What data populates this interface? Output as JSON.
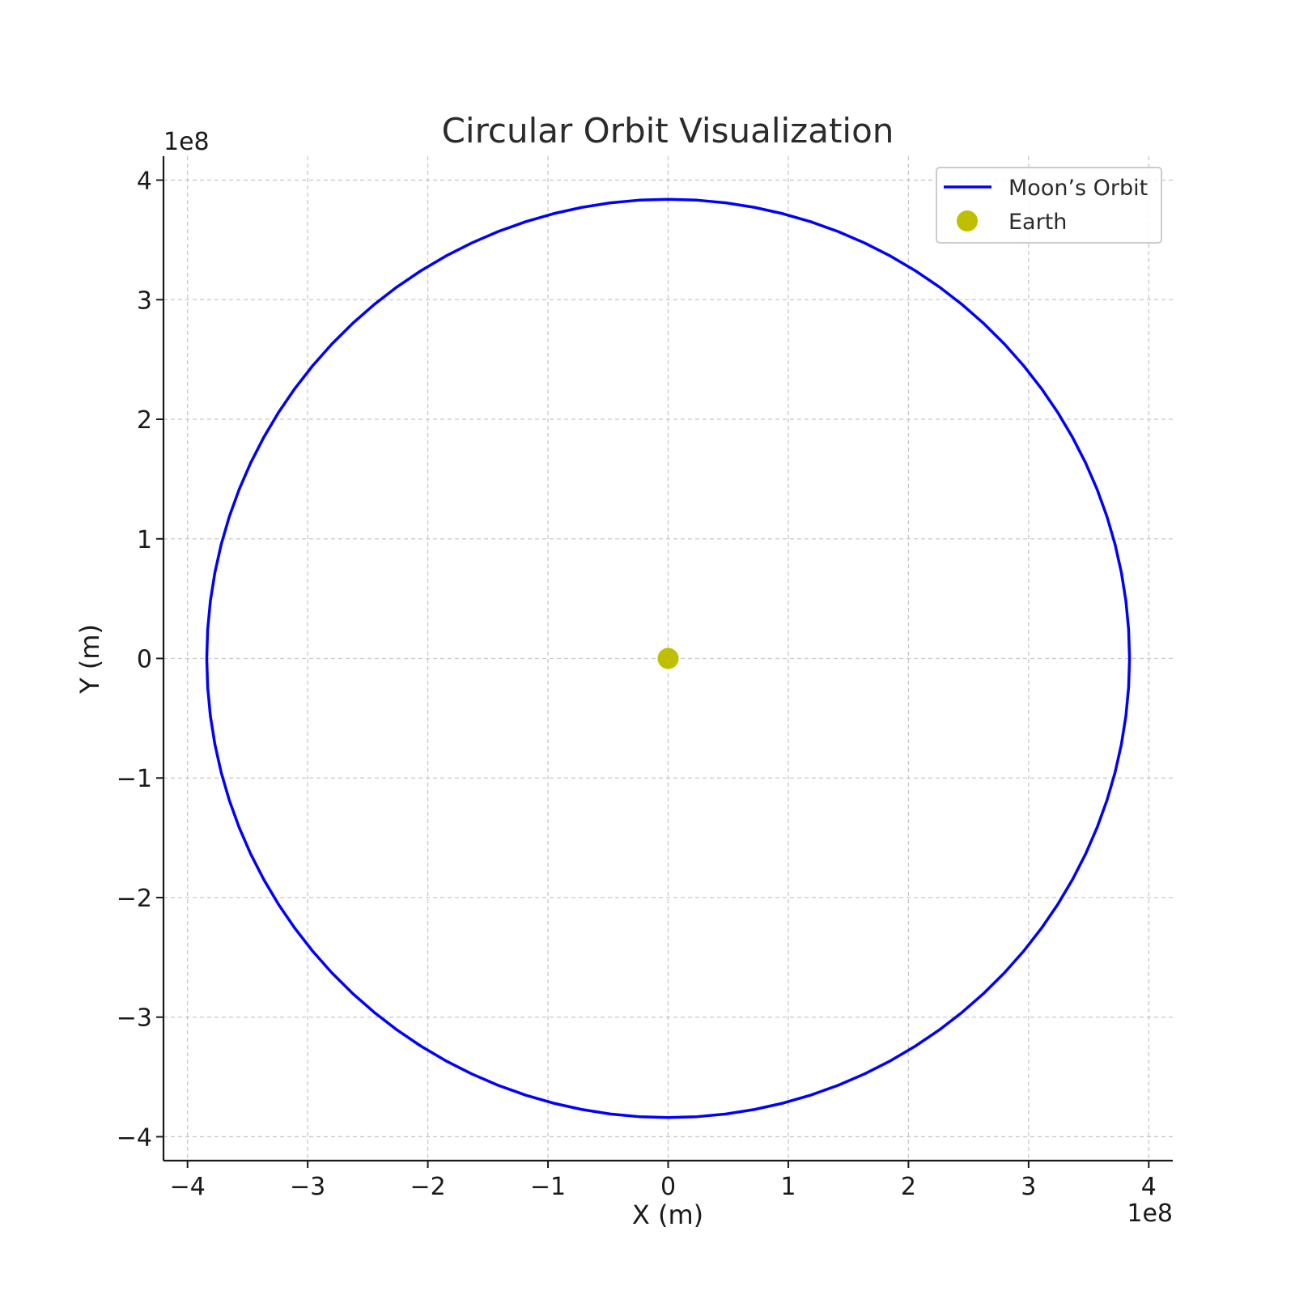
{
  "chart_data": {
    "type": "line",
    "title": "Circular Orbit Visualization",
    "xlabel": "X (m)",
    "ylabel": "Y (m)",
    "x_offset_label": "1e8",
    "y_offset_label": "1e8",
    "xlim": [
      -4.2,
      4.2
    ],
    "ylim": [
      -4.2,
      4.2
    ],
    "xticks": [
      -4,
      -3,
      -2,
      -1,
      0,
      1,
      2,
      3,
      4
    ],
    "yticks": [
      -4,
      -3,
      -2,
      -1,
      0,
      1,
      2,
      3,
      4
    ],
    "xtick_labels": [
      "−4",
      "−3",
      "−2",
      "−1",
      "0",
      "1",
      "2",
      "3",
      "4"
    ],
    "ytick_labels": [
      "−4",
      "−3",
      "−2",
      "−1",
      "0",
      "1",
      "2",
      "3",
      "4"
    ],
    "grid": true,
    "legend_position": "top-right",
    "series": [
      {
        "name": "Moon’s Orbit",
        "kind": "circle-line",
        "center": [
          0,
          0
        ],
        "radius": 3.84,
        "color": "#0000ff"
      },
      {
        "name": "Earth",
        "kind": "point",
        "x": 0,
        "y": 0,
        "color": "#bfbf00"
      }
    ]
  }
}
